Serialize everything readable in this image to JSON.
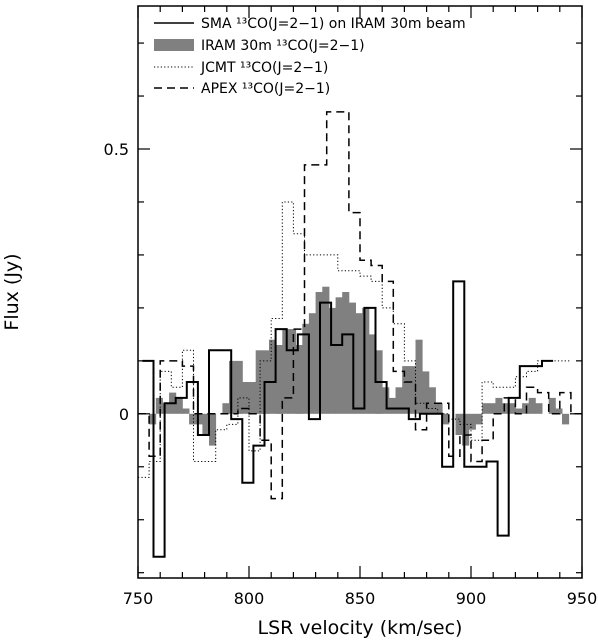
{
  "chart_data": {
    "type": "line",
    "xlabel": "LSR velocity (km/sec)",
    "ylabel": "Flux (Jy)",
    "xlim": [
      750,
      950
    ],
    "ylim": [
      -0.31,
      0.77
    ],
    "xticks": [
      750,
      800,
      850,
      900,
      950
    ],
    "xtick_labels": [
      "750",
      "800",
      "850",
      "900",
      "950"
    ],
    "yticks": [
      0,
      0.5
    ],
    "ytick_labels": [
      "0",
      "0.5"
    ],
    "grid": false,
    "legend_position": "top-left",
    "series": [
      {
        "name": "SMA ¹³CO(J=2−1) on IRAM 30m beam",
        "style": "solid",
        "x_start": 752,
        "bin_width": 5,
        "values": [
          0.1,
          -0.27,
          0.02,
          0.03,
          0.06,
          -0.04,
          0.12,
          0.12,
          -0.01,
          -0.13,
          -0.06,
          0.06,
          0.16,
          0.12,
          0.15,
          -0.01,
          0.21,
          0.13,
          0.15,
          0.01,
          0.2,
          0.06,
          0.01,
          0.01,
          -0.01,
          0.0,
          0.0,
          -0.1,
          0.25,
          -0.1,
          -0.1,
          -0.09,
          -0.23,
          0.03,
          0.09,
          0.09,
          0.1
        ]
      },
      {
        "name": "IRAM 30m ¹³CO(J=2−1)",
        "style": "filled",
        "x_start": 755,
        "bin_width": 3,
        "values": [
          -0.02,
          0.03,
          0.02,
          0.04,
          0.03,
          0.01,
          -0.02,
          -0.02,
          -0.04,
          -0.06,
          0.0,
          0.02,
          0.1,
          0.1,
          0.06,
          0.06,
          0.12,
          0.12,
          0.14,
          0.13,
          0.16,
          0.16,
          0.13,
          0.17,
          0.19,
          0.23,
          0.24,
          0.2,
          0.22,
          0.23,
          0.21,
          0.19,
          0.2,
          0.15,
          0.12,
          0.05,
          0.03,
          0.05,
          0.09,
          0.09,
          0.14,
          0.08,
          0.05,
          0.02,
          -0.02,
          0.0,
          -0.04,
          -0.06,
          -0.03,
          -0.02,
          0.02,
          0.02,
          0.03,
          0.02,
          0.02,
          0.01,
          0.02,
          0.03,
          0.02,
          0.0,
          0.03,
          0.01,
          -0.02,
          0.0,
          0.0,
          0.0,
          0.0
        ]
      },
      {
        "name": "JCMT ¹³CO(J=2−1)",
        "style": "dotted",
        "x_start": 750,
        "bin_width": 5,
        "values": [
          -0.12,
          -0.09,
          0.08,
          0.05,
          0.12,
          -0.09,
          -0.09,
          -0.03,
          -0.02,
          0.03,
          -0.07,
          0.1,
          0.18,
          0.4,
          0.34,
          0.3,
          0.3,
          0.3,
          0.27,
          0.27,
          0.26,
          0.25,
          0.2,
          0.17,
          0.1,
          0.02,
          0.01,
          0.0,
          -0.01,
          -0.02,
          -0.05,
          0.06,
          0.05,
          0.05,
          0.07,
          0.08,
          0.1,
          0.1,
          0.1
        ]
      },
      {
        "name": "APEX ¹³CO(J=2−1)",
        "style": "dashed",
        "x_start": 750,
        "bin_width": 5,
        "values": [
          0.0,
          -0.08,
          0.1,
          0.1,
          0.09,
          0.0,
          0.0,
          0.0,
          0.0,
          0.01,
          0.0,
          -0.05,
          -0.16,
          0.03,
          0.16,
          0.47,
          0.47,
          0.57,
          0.57,
          0.38,
          0.29,
          0.28,
          0.25,
          0.08,
          0.06,
          -0.03,
          0.02,
          0.02,
          -0.08,
          -0.04,
          -0.09,
          -0.05,
          0.0,
          0.03,
          0.0,
          0.05,
          0.04,
          0.0,
          0.04,
          0.0
        ]
      }
    ]
  }
}
